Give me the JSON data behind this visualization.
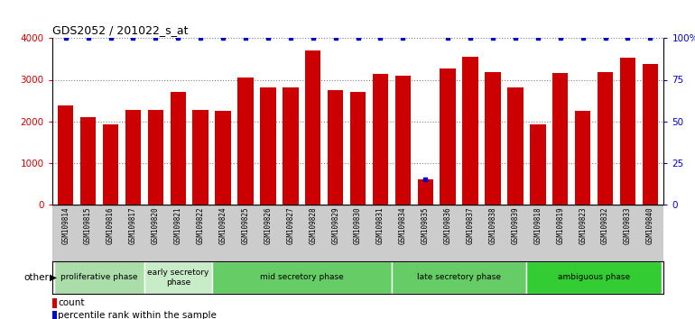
{
  "title": "GDS2052 / 201022_s_at",
  "samples": [
    "GSM109814",
    "GSM109815",
    "GSM109816",
    "GSM109817",
    "GSM109820",
    "GSM109821",
    "GSM109822",
    "GSM109824",
    "GSM109825",
    "GSM109826",
    "GSM109827",
    "GSM109828",
    "GSM109829",
    "GSM109830",
    "GSM109831",
    "GSM109834",
    "GSM109835",
    "GSM109836",
    "GSM109837",
    "GSM109838",
    "GSM109839",
    "GSM109818",
    "GSM109819",
    "GSM109823",
    "GSM109832",
    "GSM109833",
    "GSM109840"
  ],
  "counts": [
    2380,
    2100,
    1930,
    2280,
    2280,
    2700,
    2270,
    2250,
    3050,
    2820,
    2820,
    3700,
    2760,
    2700,
    3150,
    3100,
    600,
    3280,
    3560,
    3180,
    2820,
    1930,
    3160,
    2240,
    3190,
    3540,
    3390
  ],
  "percentile_dots": [
    100,
    100,
    100,
    100,
    100,
    100,
    100,
    100,
    100,
    100,
    100,
    100,
    100,
    100,
    100,
    100,
    15,
    100,
    100,
    100,
    100,
    100,
    100,
    100,
    100,
    100,
    100
  ],
  "bar_color": "#cc0000",
  "dot_color": "#0000cc",
  "ylim_left": [
    0,
    4000
  ],
  "ylim_right": [
    0,
    100
  ],
  "yticks_left": [
    0,
    1000,
    2000,
    3000,
    4000
  ],
  "yticks_right": [
    0,
    25,
    50,
    75,
    100
  ],
  "ytick_labels_right": [
    "0",
    "25",
    "50",
    "75",
    "100%"
  ],
  "phases": [
    {
      "label": "proliferative phase",
      "start": 0,
      "end": 4,
      "color": "#aaddaa"
    },
    {
      "label": "early secretory\nphase",
      "start": 4,
      "end": 7,
      "color": "#c8ecc8"
    },
    {
      "label": "mid secretory phase",
      "start": 7,
      "end": 15,
      "color": "#66cc66"
    },
    {
      "label": "late secretory phase",
      "start": 15,
      "end": 21,
      "color": "#66cc66"
    },
    {
      "label": "ambiguous phase",
      "start": 21,
      "end": 27,
      "color": "#33cc33"
    }
  ],
  "other_label": "other",
  "legend_count_label": "count",
  "legend_pct_label": "percentile rank within the sample",
  "tick_area_color": "#cccccc",
  "phase_border_color": "#ffffff"
}
